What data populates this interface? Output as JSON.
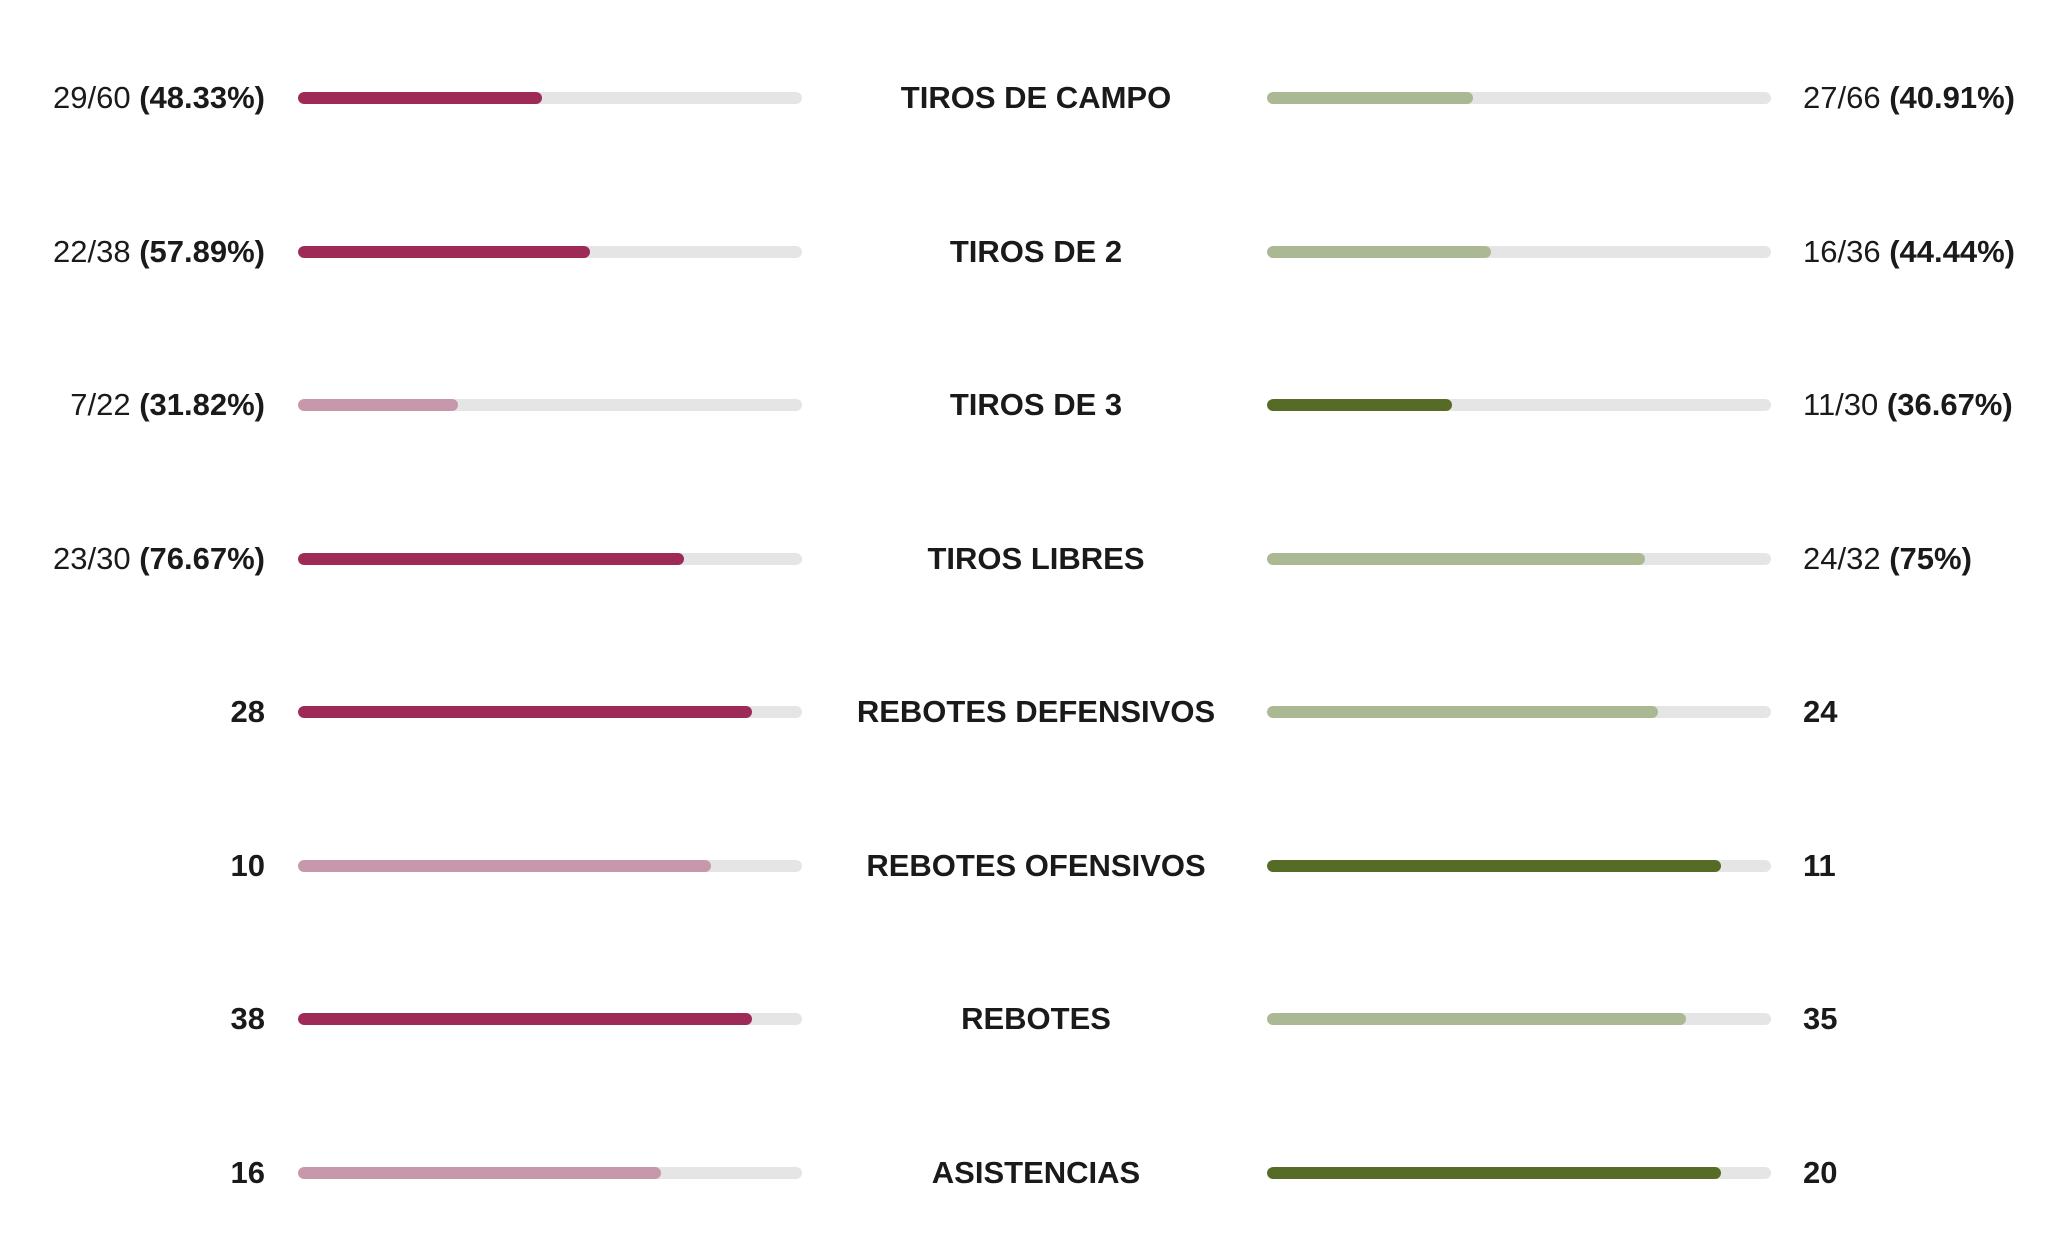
{
  "colors": {
    "home_strong": "#9e2a57",
    "home_light": "#c798ab",
    "away_strong": "#566b25",
    "away_light": "#abb894",
    "track": "#e5e5e5"
  },
  "stats": [
    {
      "label": "TIROS DE CAMPO",
      "home": {
        "ratio": "29/60",
        "pct": "(48.33%)",
        "fill": 0.4833,
        "style": "strong"
      },
      "away": {
        "ratio": "27/66",
        "pct": "(40.91%)",
        "fill": 0.4091,
        "style": "light"
      }
    },
    {
      "label": "TIROS DE 2",
      "home": {
        "ratio": "22/38",
        "pct": "(57.89%)",
        "fill": 0.5789,
        "style": "strong"
      },
      "away": {
        "ratio": "16/36",
        "pct": "(44.44%)",
        "fill": 0.4444,
        "style": "light"
      }
    },
    {
      "label": "TIROS DE 3",
      "home": {
        "ratio": "7/22",
        "pct": "(31.82%)",
        "fill": 0.3182,
        "style": "light"
      },
      "away": {
        "ratio": "11/30",
        "pct": "(36.67%)",
        "fill": 0.3667,
        "style": "strong"
      }
    },
    {
      "label": "TIROS LIBRES",
      "home": {
        "ratio": "23/30",
        "pct": "(76.67%)",
        "fill": 0.7667,
        "style": "strong"
      },
      "away": {
        "ratio": "24/32",
        "pct": "(75%)",
        "fill": 0.75,
        "style": "light"
      }
    },
    {
      "label": "REBOTES DEFENSIVOS",
      "home": {
        "value": "28",
        "fill": 0.9,
        "style": "strong"
      },
      "away": {
        "value": "24",
        "fill": 0.775,
        "style": "light"
      }
    },
    {
      "label": "REBOTES OFENSIVOS",
      "home": {
        "value": "10",
        "fill": 0.82,
        "style": "light"
      },
      "away": {
        "value": "11",
        "fill": 0.9,
        "style": "strong"
      }
    },
    {
      "label": "REBOTES",
      "home": {
        "value": "38",
        "fill": 0.9,
        "style": "strong"
      },
      "away": {
        "value": "35",
        "fill": 0.832,
        "style": "light"
      }
    },
    {
      "label": "ASISTENCIAS",
      "home": {
        "value": "16",
        "fill": 0.72,
        "style": "light"
      },
      "away": {
        "value": "20",
        "fill": 0.9,
        "style": "strong"
      }
    }
  ]
}
